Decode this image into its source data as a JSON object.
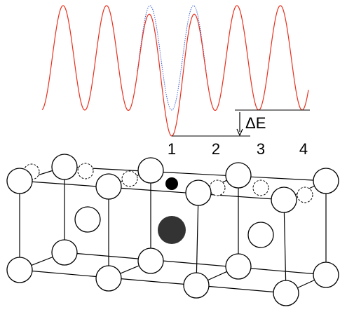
{
  "labels": {
    "delta_e": "ΔE",
    "sites": [
      "1",
      "2",
      "3",
      "4"
    ]
  }
}
